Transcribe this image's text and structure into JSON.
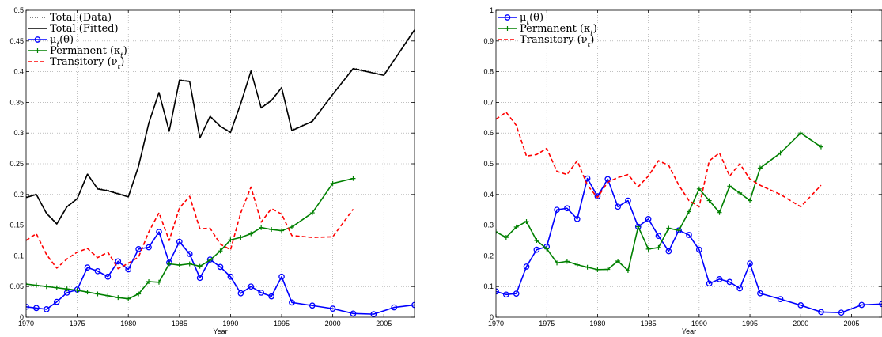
{
  "colors": {
    "total_data": "#000000",
    "total_fitted": "#000000",
    "mu": "#0000ff",
    "permanent": "#008000",
    "transitory": "#ff0000"
  },
  "chart_data": [
    {
      "type": "line",
      "xlabel": "Year",
      "xlim": [
        1970,
        2008
      ],
      "ylim": [
        0,
        0.5
      ],
      "xticks": [
        1970,
        1975,
        1980,
        1985,
        1990,
        1995,
        2000,
        2005
      ],
      "yticks": [
        0,
        0.05,
        0.1,
        0.15,
        0.2,
        0.25,
        0.3,
        0.35,
        0.4,
        0.45,
        0.5
      ],
      "ytick_labels": [
        "0",
        "0.05",
        "0.1",
        "0.15",
        "0.2",
        "0.25",
        "0.3",
        "0.35",
        "0.4",
        "0.45",
        "0.5"
      ],
      "grid": true,
      "legend_position": "top-left",
      "series": [
        {
          "name": "Total (Data)",
          "line": "dotted",
          "marker": "none",
          "color_key": "total_data",
          "x": [
            1970,
            1971,
            1972,
            1973,
            1974,
            1975,
            1976,
            1977,
            1978,
            1979,
            1980,
            1981,
            1982,
            1983,
            1984,
            1985,
            1986,
            1987,
            1988,
            1989,
            1990,
            1991,
            1992,
            1993,
            1994,
            1995,
            1996,
            1998,
            2000,
            2002,
            2005,
            2008
          ],
          "y": [
            0.196,
            0.201,
            0.17,
            0.153,
            0.181,
            0.194,
            0.234,
            0.21,
            0.207,
            0.202,
            0.197,
            0.247,
            0.317,
            0.367,
            0.304,
            0.387,
            0.385,
            0.293,
            0.328,
            0.312,
            0.302,
            0.349,
            0.4,
            0.342,
            0.354,
            0.375,
            0.305,
            0.32,
            0.364,
            0.406,
            0.395,
            0.469
          ]
        },
        {
          "name": "Total (Fitted)",
          "line": "solid",
          "marker": "none",
          "color_key": "total_fitted",
          "x": [
            1970,
            1971,
            1972,
            1973,
            1974,
            1975,
            1976,
            1977,
            1978,
            1979,
            1980,
            1981,
            1982,
            1983,
            1984,
            1985,
            1986,
            1987,
            1988,
            1989,
            1990,
            1991,
            1992,
            1993,
            1994,
            1995,
            1996,
            1998,
            2000,
            2002,
            2005,
            2008
          ],
          "y": [
            0.195,
            0.2,
            0.169,
            0.152,
            0.18,
            0.193,
            0.233,
            0.209,
            0.206,
            0.201,
            0.196,
            0.246,
            0.316,
            0.366,
            0.303,
            0.386,
            0.384,
            0.292,
            0.327,
            0.311,
            0.301,
            0.348,
            0.401,
            0.341,
            0.353,
            0.374,
            0.304,
            0.319,
            0.363,
            0.405,
            0.394,
            0.468
          ]
        },
        {
          "name": "μt(θ)",
          "label_main": "μ",
          "label_sub": "t",
          "label_tail": "(θ)",
          "line": "solid",
          "marker": "circle",
          "color_key": "mu",
          "x": [
            1970,
            1971,
            1972,
            1973,
            1974,
            1975,
            1976,
            1977,
            1978,
            1979,
            1980,
            1981,
            1982,
            1983,
            1984,
            1985,
            1986,
            1987,
            1988,
            1989,
            1990,
            1991,
            1992,
            1993,
            1994,
            1995,
            1996,
            1998,
            2000,
            2002,
            2004,
            2006,
            2008
          ],
          "y": [
            0.017,
            0.015,
            0.013,
            0.025,
            0.04,
            0.045,
            0.081,
            0.075,
            0.066,
            0.091,
            0.078,
            0.111,
            0.114,
            0.139,
            0.089,
            0.123,
            0.103,
            0.064,
            0.094,
            0.082,
            0.066,
            0.039,
            0.05,
            0.04,
            0.034,
            0.066,
            0.024,
            0.019,
            0.014,
            0.006,
            0.005,
            0.016,
            0.02
          ]
        },
        {
          "name": "Permanent (κt)",
          "label_main": "Permanent (κ",
          "label_sub": "t",
          "label_tail": ")",
          "line": "solid",
          "marker": "plus",
          "color_key": "permanent",
          "x": [
            1970,
            1971,
            1972,
            1973,
            1974,
            1975,
            1976,
            1977,
            1978,
            1979,
            1980,
            1981,
            1982,
            1983,
            1984,
            1985,
            1986,
            1987,
            1988,
            1989,
            1990,
            1991,
            1992,
            1993,
            1994,
            1995,
            1996,
            1998,
            2000,
            2002
          ],
          "y": [
            0.054,
            0.052,
            0.05,
            0.048,
            0.046,
            0.044,
            0.041,
            0.038,
            0.035,
            0.032,
            0.03,
            0.038,
            0.058,
            0.057,
            0.087,
            0.085,
            0.087,
            0.083,
            0.093,
            0.108,
            0.126,
            0.13,
            0.136,
            0.146,
            0.143,
            0.141,
            0.147,
            0.17,
            0.218,
            0.226
          ]
        },
        {
          "name": "Transitory (νt)",
          "label_main": "Transitory (ν",
          "label_sub": "t",
          "label_tail": ")",
          "line": "dashed",
          "marker": "none",
          "color_key": "transitory",
          "x": [
            1970,
            1971,
            1972,
            1973,
            1974,
            1975,
            1976,
            1977,
            1978,
            1979,
            1980,
            1981,
            1982,
            1983,
            1984,
            1985,
            1986,
            1987,
            1988,
            1989,
            1990,
            1991,
            1992,
            1993,
            1994,
            1995,
            1996,
            1998,
            2000,
            2002
          ],
          "y": [
            0.125,
            0.136,
            0.102,
            0.08,
            0.095,
            0.106,
            0.112,
            0.097,
            0.106,
            0.079,
            0.088,
            0.098,
            0.139,
            0.17,
            0.125,
            0.178,
            0.197,
            0.144,
            0.145,
            0.119,
            0.11,
            0.17,
            0.212,
            0.155,
            0.177,
            0.168,
            0.133,
            0.13,
            0.131,
            0.176
          ]
        }
      ]
    },
    {
      "type": "line",
      "xlabel": "Year",
      "xlim": [
        1970,
        2008
      ],
      "ylim": [
        0,
        1
      ],
      "xticks": [
        1970,
        1975,
        1980,
        1985,
        1990,
        1995,
        2000,
        2005
      ],
      "yticks": [
        0,
        0.1,
        0.2,
        0.3,
        0.4,
        0.5,
        0.6,
        0.7,
        0.8,
        0.9,
        1
      ],
      "ytick_labels": [
        "0",
        "0.1",
        "0.2",
        "0.3",
        "0.4",
        "0.5",
        "0.6",
        "0.7",
        "0.8",
        "0.9",
        "1"
      ],
      "grid": true,
      "legend_position": "top-left",
      "series": [
        {
          "name": "μt(θ)",
          "label_main": "μ",
          "label_sub": "t",
          "label_tail": "(θ)",
          "line": "solid",
          "marker": "circle",
          "color_key": "mu",
          "x": [
            1970,
            1971,
            1972,
            1973,
            1974,
            1975,
            1976,
            1977,
            1978,
            1979,
            1980,
            1981,
            1982,
            1983,
            1984,
            1985,
            1986,
            1987,
            1988,
            1989,
            1990,
            1991,
            1992,
            1993,
            1994,
            1995,
            1996,
            1998,
            2000,
            2002,
            2004,
            2006,
            2008
          ],
          "y": [
            0.084,
            0.074,
            0.077,
            0.165,
            0.22,
            0.23,
            0.35,
            0.355,
            0.32,
            0.452,
            0.394,
            0.45,
            0.36,
            0.38,
            0.295,
            0.32,
            0.265,
            0.215,
            0.283,
            0.268,
            0.22,
            0.11,
            0.124,
            0.115,
            0.094,
            0.175,
            0.078,
            0.059,
            0.039,
            0.017,
            0.015,
            0.04,
            0.043
          ]
        },
        {
          "name": "Permanent (κt)",
          "label_main": "Permanent (κ",
          "label_sub": "t",
          "label_tail": ")",
          "line": "solid",
          "marker": "plus",
          "color_key": "permanent",
          "x": [
            1970,
            1971,
            1972,
            1973,
            1974,
            1975,
            1976,
            1977,
            1978,
            1979,
            1980,
            1981,
            1982,
            1983,
            1984,
            1985,
            1986,
            1987,
            1988,
            1989,
            1990,
            1991,
            1992,
            1993,
            1994,
            1995,
            1996,
            1998,
            2000,
            2002
          ],
          "y": [
            0.278,
            0.26,
            0.294,
            0.312,
            0.25,
            0.223,
            0.177,
            0.182,
            0.171,
            0.163,
            0.155,
            0.156,
            0.183,
            0.152,
            0.295,
            0.222,
            0.227,
            0.29,
            0.283,
            0.344,
            0.418,
            0.38,
            0.341,
            0.427,
            0.405,
            0.38,
            0.486,
            0.535,
            0.6,
            0.555
          ]
        },
        {
          "name": "Transitory (νt)",
          "label_main": "Transitory (ν",
          "label_sub": "t",
          "label_tail": ")",
          "line": "dashed",
          "marker": "none",
          "color_key": "transitory",
          "x": [
            1970,
            1971,
            1972,
            1973,
            1974,
            1975,
            1976,
            1977,
            1978,
            1979,
            1980,
            1981,
            1982,
            1983,
            1984,
            1985,
            1986,
            1987,
            1988,
            1989,
            1990,
            1991,
            1992,
            1993,
            1994,
            1995,
            1996,
            1998,
            2000,
            2002
          ],
          "y": [
            0.645,
            0.668,
            0.625,
            0.525,
            0.53,
            0.55,
            0.475,
            0.465,
            0.51,
            0.43,
            0.39,
            0.44,
            0.455,
            0.465,
            0.425,
            0.46,
            0.51,
            0.495,
            0.43,
            0.38,
            0.36,
            0.51,
            0.535,
            0.46,
            0.5,
            0.45,
            0.43,
            0.4,
            0.36,
            0.43
          ]
        }
      ]
    }
  ]
}
